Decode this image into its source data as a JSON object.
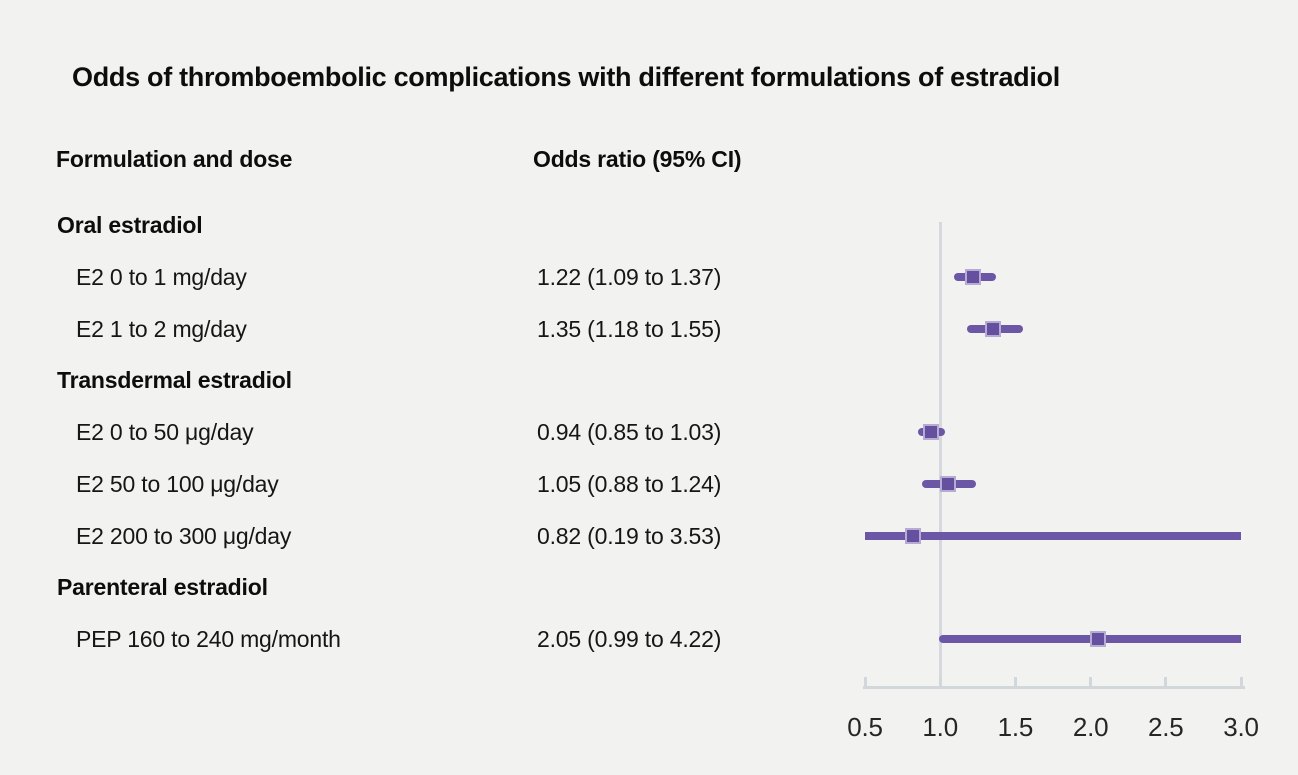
{
  "chart_data": {
    "type": "forest",
    "title": "Odds of thromboembolic complications with different formulations of estradiol",
    "column_headers": [
      "Formulation and dose",
      "Odds ratio (95% CI)"
    ],
    "x_axis": {
      "min": 0.5,
      "max": 3.0,
      "ticks": [
        0.5,
        1.0,
        1.5,
        2.0,
        2.5,
        3.0
      ],
      "tick_labels": [
        "0.5",
        "1.0",
        "1.5",
        "2.0",
        "2.5",
        "3.0"
      ],
      "reference_line": 1.0
    },
    "rows": [
      {
        "kind": "group",
        "label": "Oral estradiol"
      },
      {
        "kind": "item",
        "label": "E2 0 to 1 mg/day",
        "display": "1.22 (1.09 to 1.37)",
        "or": 1.22,
        "ci_low": 1.09,
        "ci_high": 1.37
      },
      {
        "kind": "item",
        "label": "E2 1 to 2 mg/day",
        "display": "1.35 (1.18 to 1.55)",
        "or": 1.35,
        "ci_low": 1.18,
        "ci_high": 1.55
      },
      {
        "kind": "group",
        "label": "Transdermal estradiol"
      },
      {
        "kind": "item",
        "label": "E2 0 to 50 μg/day",
        "display": "0.94 (0.85 to 1.03)",
        "or": 0.94,
        "ci_low": 0.85,
        "ci_high": 1.03
      },
      {
        "kind": "item",
        "label": "E2 50 to 100 μg/day",
        "display": "1.05 (0.88 to 1.24)",
        "or": 1.05,
        "ci_low": 0.88,
        "ci_high": 1.24
      },
      {
        "kind": "item",
        "label": "E2 200 to 300 μg/day",
        "display": "0.82 (0.19 to 3.53)",
        "or": 0.82,
        "ci_low": 0.19,
        "ci_high": 3.53
      },
      {
        "kind": "group",
        "label": "Parenteral estradiol"
      },
      {
        "kind": "item",
        "label": "PEP 160 to 240 mg/month",
        "display": "2.05 (0.99 to 4.22)",
        "or": 2.05,
        "ci_low": 0.99,
        "ci_high": 4.22
      }
    ],
    "colors": {
      "marker": "#65509f",
      "marker_border": "#b7abd4",
      "ci_line": "#6c57a6",
      "axis": "#d2d7dc",
      "reference_line": "#d6d7df",
      "background": "#f2f2f1",
      "text": "#1a1a1a"
    }
  }
}
